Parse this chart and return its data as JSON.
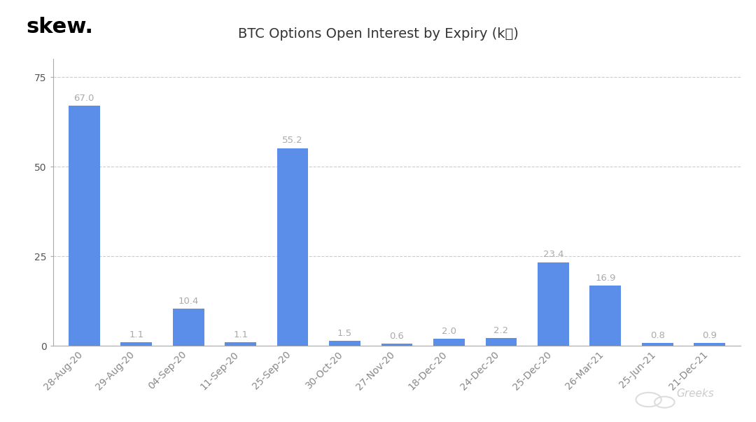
{
  "title": "BTC Options Open Interest by Expiry (k₿)",
  "categories": [
    "28-Aug-20",
    "29-Aug-20",
    "04-Sep-20",
    "11-Sep-20",
    "25-Sep-20",
    "30-Oct-20",
    "27-Nov-20",
    "18-Dec-20",
    "24-Dec-20",
    "25-Dec-20",
    "26-Mar-21",
    "25-Jun-21",
    "21-Dec-21"
  ],
  "values": [
    67.0,
    1.1,
    10.4,
    1.1,
    55.2,
    1.5,
    0.6,
    2.0,
    2.2,
    23.4,
    16.9,
    0.8,
    0.9
  ],
  "bar_color": "#5b8ee8",
  "label_color": "#aaaaaa",
  "yticks": [
    0,
    25,
    50,
    75
  ],
  "ylim": [
    0,
    80
  ],
  "background_color": "#ffffff",
  "grid_color": "#cccccc",
  "title_fontsize": 14,
  "label_fontsize": 9.5,
  "tick_fontsize": 10,
  "skew_text": "skew.",
  "watermark": "Greeks",
  "skew_fontsize": 22,
  "axis_color": "#aaaaaa",
  "ytick_color": "#555555",
  "xtick_color": "#888888"
}
